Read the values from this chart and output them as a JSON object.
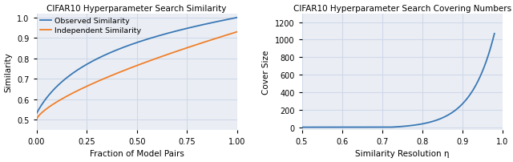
{
  "left_title": "CIFAR10 Hyperparameter Search Similarity",
  "left_xlabel": "Fraction of Model Pairs",
  "left_ylabel": "Similarity",
  "left_xlim": [
    0.0,
    1.0
  ],
  "left_ylim": [
    0.45,
    1.02
  ],
  "left_xticks": [
    0.0,
    0.25,
    0.5,
    0.75,
    1.0
  ],
  "left_yticks": [
    0.5,
    0.6,
    0.7,
    0.8,
    0.9,
    1.0
  ],
  "observed_color": "#3a78b5",
  "independent_color": "#f07f2a",
  "legend_labels": [
    "Observed Similarity",
    "Independent Similarity"
  ],
  "right_title": "CIFAR10 Hyperparameter Search Covering Numbers",
  "right_xlabel": "Similarity Resolution η",
  "right_ylabel": "Cover Size",
  "right_xlim": [
    0.5,
    1.0
  ],
  "right_ylim": [
    -30,
    1300
  ],
  "right_xticks": [
    0.5,
    0.6,
    0.7,
    0.8,
    0.9,
    1.0
  ],
  "right_yticks": [
    0,
    200,
    400,
    600,
    800,
    1000,
    1200
  ],
  "cover_color": "#3a78b5",
  "grid_color": "#d0d8e8",
  "bg_color": "#eaeef4"
}
